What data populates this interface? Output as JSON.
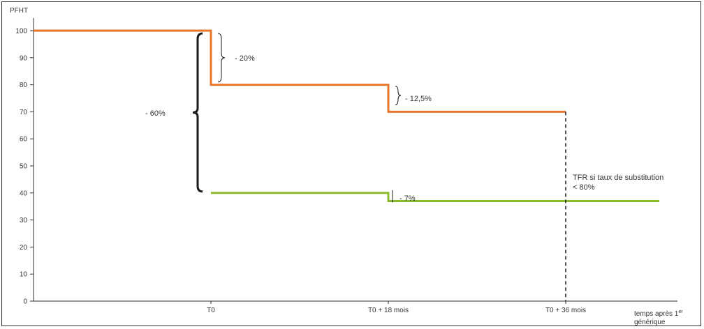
{
  "chart_data": {
    "type": "line",
    "title": "",
    "ylabel": "PFHT",
    "xlabel": "temps après 1er générique",
    "xlabel_main": "temps après 1",
    "xlabel_sup": "er",
    "xlabel_line2": "générique",
    "ylim": [
      0,
      100
    ],
    "yticks": [
      0,
      10,
      20,
      30,
      40,
      50,
      60,
      70,
      80,
      90,
      100
    ],
    "x_categories": [
      "T0",
      "T0 + 18 mois",
      "T0 + 36 mois"
    ],
    "grid": false,
    "series": [
      {
        "color": "#e8762c",
        "points": [
          {
            "x": "start",
            "y": 100
          },
          {
            "x": "T0",
            "y": 100
          },
          {
            "x": "T0",
            "y": 80
          },
          {
            "x": "T0 + 18 mois",
            "y": 80
          },
          {
            "x": "T0 + 18 mois",
            "y": 70
          },
          {
            "x": "T0 + 36 mois",
            "y": 70
          }
        ]
      },
      {
        "color": "#8bbb2c",
        "points": [
          {
            "x": "T0",
            "y": 40
          },
          {
            "x": "T0 + 18 mois",
            "y": 40
          },
          {
            "x": "T0 + 18 mois",
            "y": 37
          },
          {
            "x": "end",
            "y": 37
          }
        ]
      }
    ],
    "annotations": {
      "drop_20": "- 20%",
      "drop_12_5": "- 12,5%",
      "drop_60": "- 60%",
      "drop_7": "- 7%",
      "tfr_line1": "TFR si taux de substitution",
      "tfr_line2": "< 80%"
    }
  }
}
